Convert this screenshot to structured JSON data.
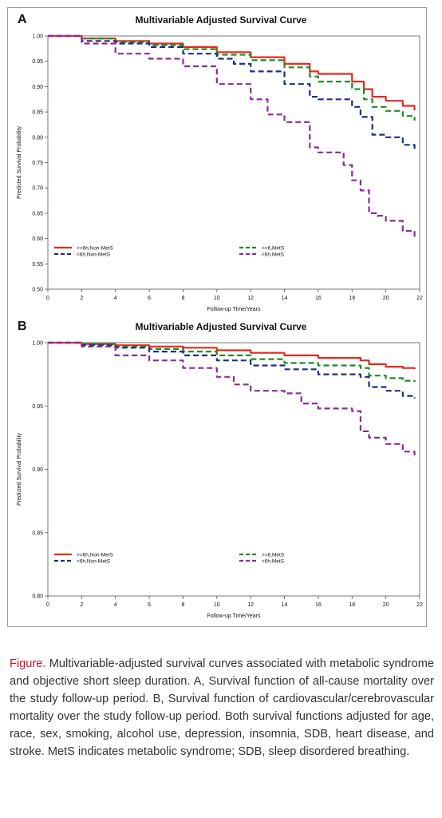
{
  "caption": {
    "label": "Figure.",
    "text": " Multivariable-adjusted survival curves associated with metabolic syndrome and objective short sleep duration. A, Survival function of all-cause mortality over the study follow-up period. B, Survival function of cardiovascular/cerebrovascular mortality over the study follow-up period. Both survival functions adjusted for age, race, sex, smoking, alcohol use, depression, insomnia, SDB, heart disease, and stroke. MetS indicates metabolic syndrome; SDB, sleep disordered breathing."
  },
  "chart_data": [
    {
      "panel": "A",
      "type": "line",
      "title": "Multivariable Adjusted Survival Curve",
      "xlabel": "Follow-up Time/Years",
      "ylabel": "Predicted Survival Probability",
      "xlim": [
        0,
        22
      ],
      "ylim": [
        0.5,
        1.0
      ],
      "xticks": [
        0,
        2,
        4,
        6,
        8,
        10,
        12,
        14,
        16,
        18,
        20,
        22
      ],
      "yticks": [
        0.5,
        0.55,
        0.6,
        0.65,
        0.7,
        0.75,
        0.8,
        0.85,
        0.9,
        0.95,
        1.0
      ],
      "ytick_labels": [
        "0.50",
        "0.55",
        "0.60",
        "0.65",
        "0.70",
        "0.75",
        "0.80",
        "0.85",
        "0.90",
        "0.95",
        "1.00"
      ],
      "grid": false,
      "legend": "bottom-left",
      "series": [
        {
          "name": ">=6h,Non-MetS",
          "color": "#e8281e",
          "dash": "solid",
          "x": [
            0,
            2,
            4,
            6,
            8,
            10,
            12,
            14,
            15.5,
            16,
            18,
            18.7,
            19.2,
            20,
            21,
            21.7
          ],
          "y": [
            1.0,
            0.995,
            0.99,
            0.985,
            0.978,
            0.968,
            0.958,
            0.945,
            0.93,
            0.925,
            0.91,
            0.895,
            0.88,
            0.872,
            0.862,
            0.853
          ]
        },
        {
          "name": ">=6,MetS",
          "color": "#1f8b24",
          "dash": "dashed",
          "x": [
            0,
            2,
            4,
            6,
            8,
            10,
            12,
            14,
            15.5,
            16,
            18,
            18.7,
            19.2,
            20,
            21,
            21.7
          ],
          "y": [
            1.0,
            0.995,
            0.988,
            0.982,
            0.974,
            0.963,
            0.952,
            0.938,
            0.92,
            0.91,
            0.895,
            0.875,
            0.86,
            0.852,
            0.842,
            0.833
          ]
        },
        {
          "name": "<6h,Non-MetS",
          "color": "#1c2e80",
          "dash": "dashed",
          "x": [
            0,
            2,
            4,
            6,
            8,
            10,
            11,
            12,
            14,
            15.5,
            16,
            18,
            18.5,
            19.2,
            20,
            21,
            21.7
          ],
          "y": [
            1.0,
            0.99,
            0.985,
            0.978,
            0.965,
            0.955,
            0.945,
            0.93,
            0.905,
            0.88,
            0.875,
            0.86,
            0.84,
            0.805,
            0.8,
            0.785,
            0.771
          ]
        },
        {
          "name": "<6h,MetS",
          "color": "#8b2a9c",
          "dash": "dashed",
          "x": [
            0,
            2,
            4,
            6,
            8,
            10,
            12,
            13,
            14,
            15.5,
            16,
            17.5,
            18,
            18.5,
            19,
            19.5,
            20,
            21,
            21.7
          ],
          "y": [
            1.0,
            0.985,
            0.965,
            0.955,
            0.94,
            0.905,
            0.875,
            0.845,
            0.83,
            0.78,
            0.77,
            0.745,
            0.715,
            0.695,
            0.65,
            0.645,
            0.635,
            0.615,
            0.598
          ]
        }
      ]
    },
    {
      "panel": "B",
      "type": "line",
      "title": "Multivariable Adjusted Survival Curve",
      "xlabel": "Follow-up Time/Years",
      "ylabel": "Predicted Survival Probability",
      "xlim": [
        0,
        22
      ],
      "ylim": [
        0.8,
        1.0
      ],
      "xticks": [
        0,
        2,
        4,
        6,
        8,
        10,
        12,
        14,
        16,
        18,
        20,
        22
      ],
      "yticks": [
        0.8,
        0.85,
        0.9,
        0.95,
        1.0
      ],
      "ytick_labels": [
        "0.80",
        "0.85",
        "0.90",
        "0.95",
        "1.00"
      ],
      "grid": false,
      "legend": "bottom-left",
      "series": [
        {
          "name": ">=6h,Non-MetS",
          "color": "#e8281e",
          "dash": "solid",
          "x": [
            0,
            2,
            4,
            6,
            8,
            10,
            12,
            14,
            16,
            18.5,
            19,
            20,
            21,
            21.7
          ],
          "y": [
            1.0,
            0.999,
            0.998,
            0.997,
            0.996,
            0.994,
            0.992,
            0.99,
            0.988,
            0.986,
            0.983,
            0.981,
            0.98,
            0.979
          ]
        },
        {
          "name": ">=6,MetS",
          "color": "#1f8b24",
          "dash": "dashed",
          "x": [
            0,
            2,
            4,
            6,
            8,
            10,
            12,
            14,
            16,
            18.5,
            19,
            20,
            21,
            21.7
          ],
          "y": [
            1.0,
            0.999,
            0.997,
            0.995,
            0.993,
            0.99,
            0.987,
            0.984,
            0.982,
            0.98,
            0.974,
            0.972,
            0.97,
            0.969
          ]
        },
        {
          "name": "<6h,Non-MetS",
          "color": "#1c2e80",
          "dash": "dashed",
          "x": [
            0,
            2,
            4,
            6,
            8,
            10,
            12,
            14,
            16,
            18.5,
            19,
            20,
            21,
            21.7
          ],
          "y": [
            1.0,
            0.998,
            0.996,
            0.993,
            0.99,
            0.986,
            0.982,
            0.979,
            0.975,
            0.973,
            0.965,
            0.962,
            0.958,
            0.956
          ]
        },
        {
          "name": "<6h,MetS",
          "color": "#8b2a9c",
          "dash": "dashed",
          "x": [
            0,
            2,
            4,
            6,
            8,
            10,
            11,
            12,
            14,
            15,
            16,
            18,
            18.5,
            19,
            20,
            21,
            21.7
          ],
          "y": [
            1.0,
            0.997,
            0.99,
            0.986,
            0.98,
            0.973,
            0.967,
            0.962,
            0.96,
            0.952,
            0.948,
            0.946,
            0.93,
            0.925,
            0.92,
            0.914,
            0.911
          ]
        }
      ]
    }
  ]
}
